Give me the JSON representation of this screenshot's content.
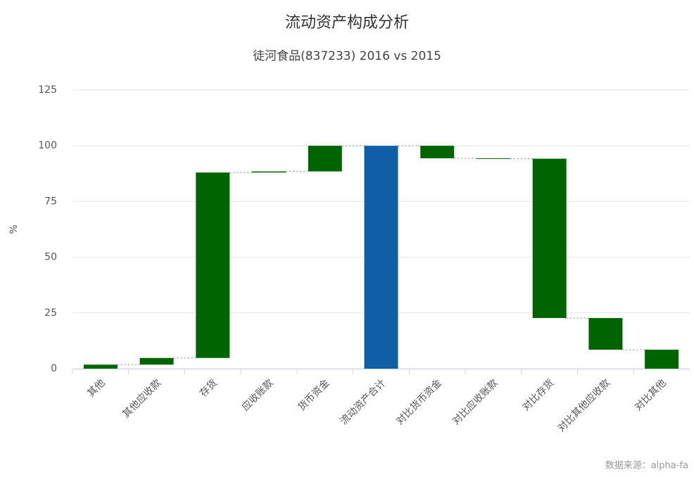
{
  "chart_data": {
    "type": "waterfall",
    "title": "流动资产构成分析",
    "subtitle": "徒河食品(837233) 2016 vs 2015",
    "y_label": "%",
    "source": "数据来源：alpha-fa",
    "categories": [
      "其他",
      "其他应收款",
      "存货",
      "应收账款",
      "货币资金",
      "流动资产合计",
      "对比货币资金",
      "对比应收账款",
      "对比存货",
      "对比其他应收款",
      "对比其他"
    ],
    "values": [
      1.8,
      3,
      83.2,
      0.5,
      11.5,
      100,
      -5.6,
      -0.2,
      -71.5,
      -14.2,
      -8.5
    ],
    "total_categories": [
      "流动资产合计"
    ],
    "color": "#006400",
    "total_color": "#0e5ea8",
    "ylim": [
      0,
      125
    ],
    "yticks": [
      0,
      25,
      50,
      75,
      100,
      125
    ],
    "grid": true
  }
}
